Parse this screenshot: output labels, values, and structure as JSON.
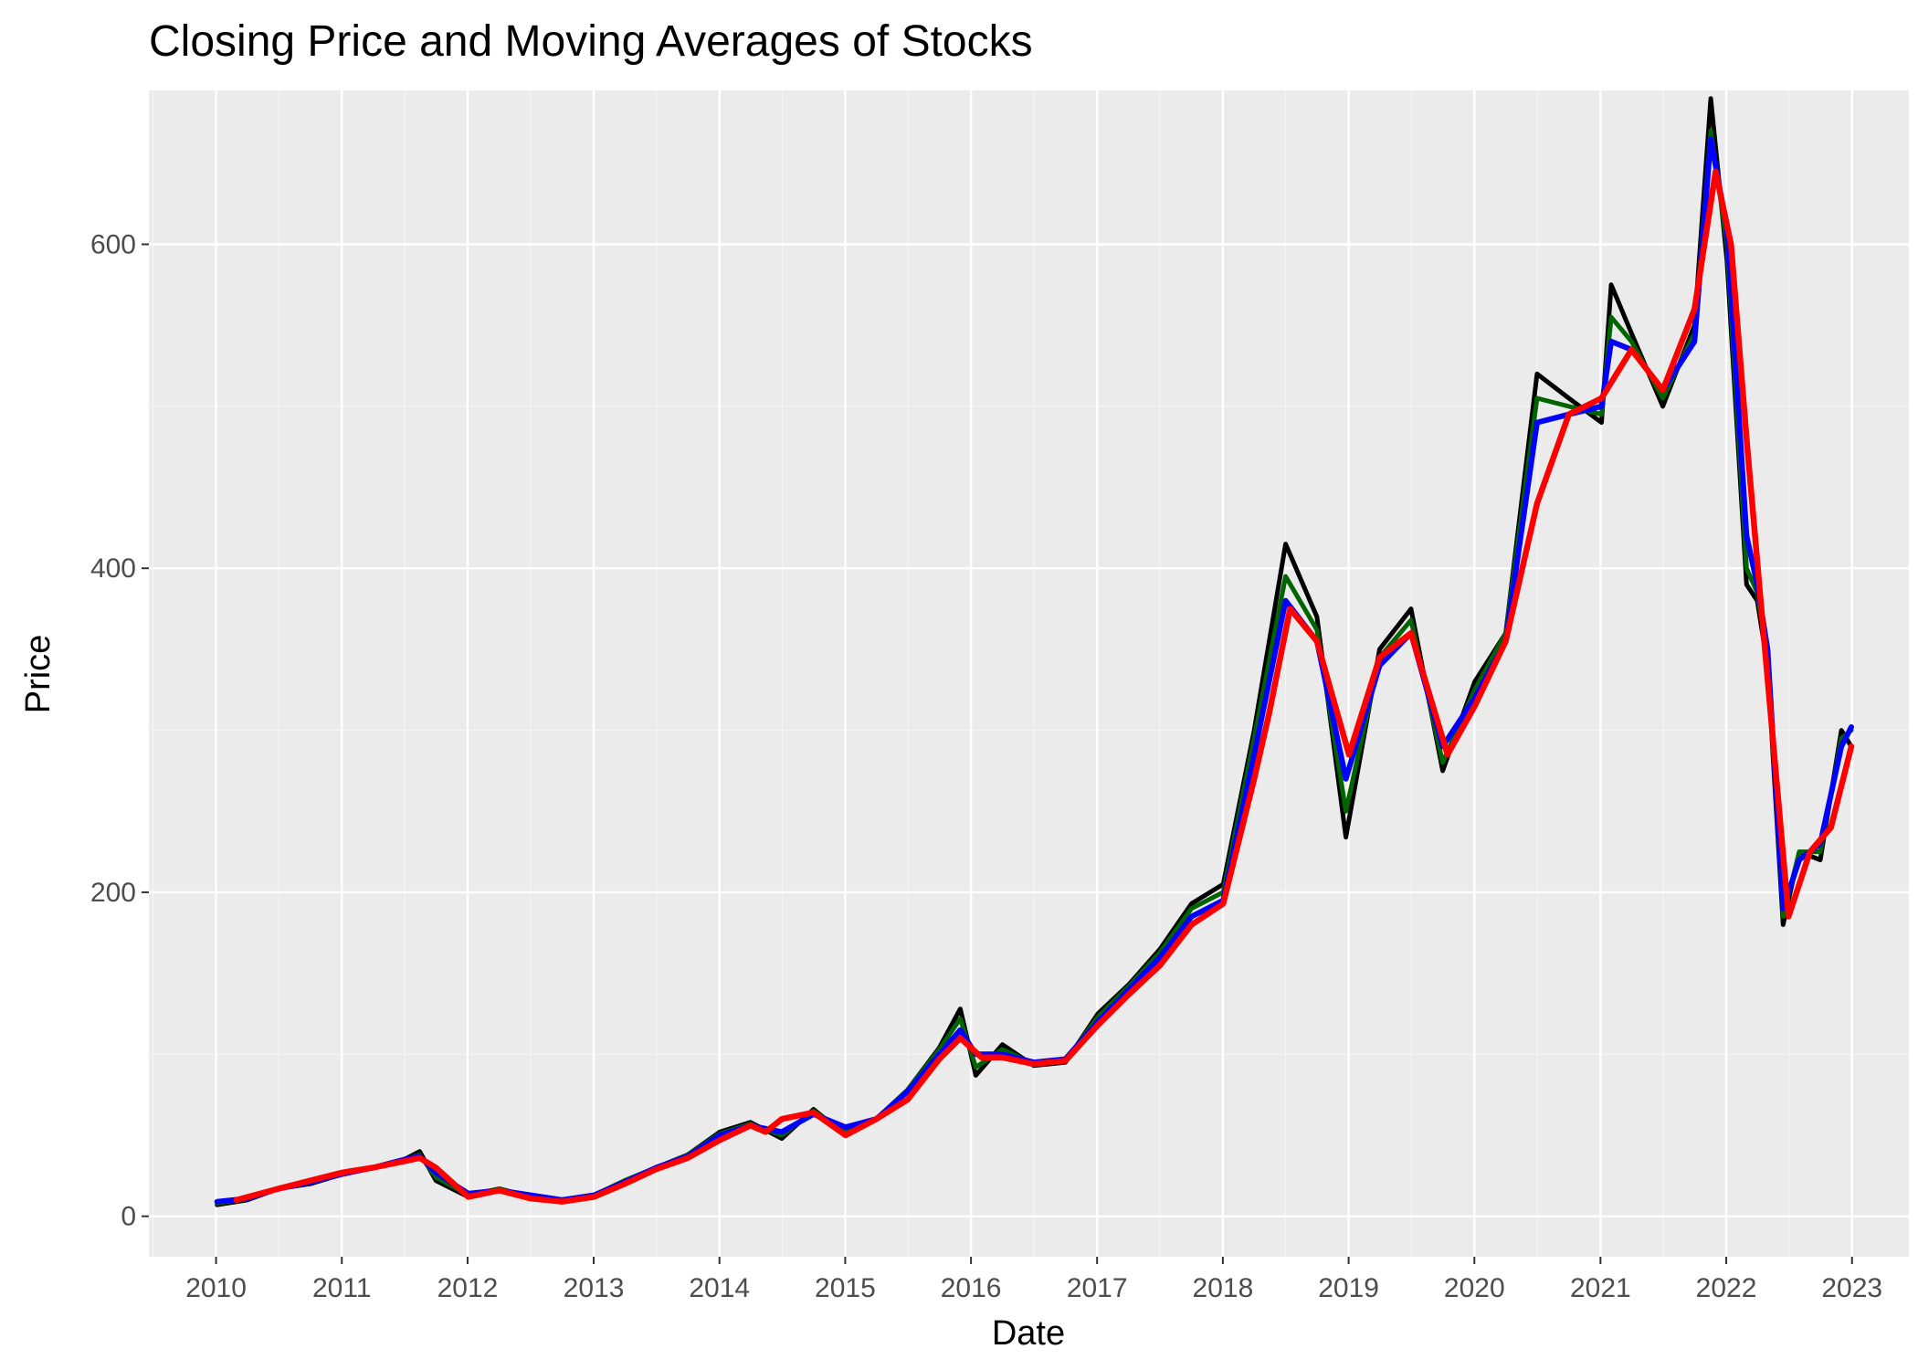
{
  "colors": {
    "panel_background": "#EBEBEB",
    "grid_major": "#FFFFFF",
    "grid_minor": "#F5F5F5",
    "close": "#000000",
    "ma_short": "#006400",
    "ma_medium": "#0000FF",
    "ma_long": "#FF0000",
    "tick_text": "#4D4D4D"
  },
  "chart_data": {
    "type": "line",
    "title": "Closing Price and Moving Averages of Stocks",
    "xlabel": "Date",
    "ylabel": "Price",
    "x_ticks": [
      "2010",
      "2011",
      "2012",
      "2013",
      "2014",
      "2015",
      "2016",
      "2017",
      "2018",
      "2019",
      "2020",
      "2021",
      "2022",
      "2023"
    ],
    "y_ticks": [
      0,
      200,
      400,
      600
    ],
    "xlim": [
      "2009-06-20",
      "2023-06-15"
    ],
    "ylim": [
      -25,
      695
    ],
    "grid": true,
    "legend": "none",
    "series": [
      {
        "color": "#000000",
        "x": [
          "2010-01-04",
          "2010-04-01",
          "2010-07-01",
          "2010-10-01",
          "2011-01-03",
          "2011-04-01",
          "2011-07-01",
          "2011-08-15",
          "2011-10-01",
          "2012-01-03",
          "2012-04-02",
          "2012-07-02",
          "2012-10-01",
          "2013-01-02",
          "2013-04-01",
          "2013-07-01",
          "2013-10-01",
          "2014-01-02",
          "2014-04-01",
          "2014-07-01",
          "2014-10-01",
          "2015-01-02",
          "2015-04-01",
          "2015-07-01",
          "2015-10-01",
          "2015-12-01",
          "2016-01-15",
          "2016-04-01",
          "2016-07-01",
          "2016-10-01",
          "2017-01-03",
          "2017-04-03",
          "2017-07-03",
          "2017-10-02",
          "2018-01-02",
          "2018-04-02",
          "2018-07-02",
          "2018-10-01",
          "2018-12-24",
          "2019-04-01",
          "2019-07-01",
          "2019-10-01",
          "2020-01-02",
          "2020-04-01",
          "2020-07-01",
          "2020-10-01",
          "2021-01-04",
          "2021-02-01",
          "2021-04-01",
          "2021-07-01",
          "2021-10-01",
          "2021-11-17",
          "2022-01-03",
          "2022-03-01",
          "2022-04-01",
          "2022-05-01",
          "2022-06-15",
          "2022-08-01",
          "2022-10-01",
          "2022-12-01",
          "2022-12-30"
        ],
        "y": [
          7,
          10,
          17,
          20,
          26,
          30,
          35,
          40,
          22,
          12,
          17,
          12,
          9,
          13,
          22,
          30,
          38,
          52,
          58,
          48,
          66,
          50,
          60,
          78,
          104,
          128,
          87,
          106,
          93,
          95,
          125,
          143,
          165,
          193,
          205,
          300,
          415,
          370,
          234,
          350,
          375,
          275,
          330,
          360,
          520,
          505,
          490,
          575,
          545,
          500,
          550,
          690,
          590,
          390,
          380,
          340,
          180,
          225,
          220,
          300,
          290
        ]
      },
      {
        "color": "#006400",
        "x": [
          "2010-01-04",
          "2010-04-01",
          "2010-07-01",
          "2010-10-01",
          "2011-01-03",
          "2011-04-01",
          "2011-07-01",
          "2011-08-15",
          "2011-10-01",
          "2012-01-03",
          "2012-04-02",
          "2012-07-02",
          "2012-10-01",
          "2013-01-02",
          "2013-04-01",
          "2013-07-01",
          "2013-10-01",
          "2014-01-02",
          "2014-04-01",
          "2014-07-01",
          "2014-10-01",
          "2015-01-02",
          "2015-04-01",
          "2015-07-01",
          "2015-10-01",
          "2015-12-01",
          "2016-01-15",
          "2016-04-01",
          "2016-07-01",
          "2016-10-01",
          "2017-01-03",
          "2017-04-03",
          "2017-07-03",
          "2017-10-02",
          "2018-01-02",
          "2018-04-02",
          "2018-07-02",
          "2018-10-01",
          "2018-12-24",
          "2019-04-01",
          "2019-07-01",
          "2019-10-01",
          "2020-01-02",
          "2020-04-01",
          "2020-07-01",
          "2020-10-01",
          "2021-01-04",
          "2021-02-01",
          "2021-04-01",
          "2021-07-01",
          "2021-10-01",
          "2021-11-17",
          "2022-01-03",
          "2022-03-01",
          "2022-04-01",
          "2022-05-01",
          "2022-06-15",
          "2022-08-01",
          "2022-10-01",
          "2022-12-01",
          "2022-12-30"
        ],
        "y": [
          8,
          11,
          17,
          21,
          26,
          30,
          35,
          38,
          24,
          13,
          17,
          12,
          9,
          13,
          22,
          30,
          38,
          51,
          57,
          50,
          65,
          52,
          60,
          78,
          103,
          122,
          92,
          103,
          94,
          96,
          123,
          142,
          163,
          190,
          200,
          295,
          395,
          362,
          250,
          345,
          368,
          280,
          325,
          360,
          505,
          500,
          495,
          555,
          540,
          505,
          545,
          670,
          600,
          400,
          385,
          345,
          185,
          225,
          225,
          295,
          300
        ]
      },
      {
        "color": "#0000FF",
        "x": [
          "2010-01-04",
          "2010-04-01",
          "2010-07-01",
          "2010-10-01",
          "2011-01-03",
          "2011-04-01",
          "2011-07-01",
          "2011-08-15",
          "2011-10-01",
          "2012-01-03",
          "2012-04-02",
          "2012-07-02",
          "2012-10-01",
          "2013-01-02",
          "2013-04-01",
          "2013-07-01",
          "2013-10-01",
          "2014-01-02",
          "2014-04-01",
          "2014-07-01",
          "2014-10-01",
          "2015-01-02",
          "2015-04-01",
          "2015-07-01",
          "2015-10-01",
          "2015-12-01",
          "2016-01-15",
          "2016-04-01",
          "2016-07-01",
          "2016-10-01",
          "2017-01-03",
          "2017-04-03",
          "2017-07-03",
          "2017-10-02",
          "2018-01-02",
          "2018-04-02",
          "2018-07-02",
          "2018-10-01",
          "2018-12-24",
          "2019-04-01",
          "2019-07-01",
          "2019-10-01",
          "2020-01-02",
          "2020-04-01",
          "2020-07-01",
          "2020-10-01",
          "2021-01-04",
          "2021-02-01",
          "2021-04-01",
          "2021-07-01",
          "2021-10-01",
          "2021-11-17",
          "2022-01-03",
          "2022-03-01",
          "2022-04-01",
          "2022-05-01",
          "2022-06-15",
          "2022-08-01",
          "2022-10-01",
          "2022-12-01",
          "2022-12-30"
        ],
        "y": [
          9,
          11,
          17,
          21,
          26,
          30,
          35,
          37,
          27,
          14,
          16,
          13,
          10,
          13,
          21,
          30,
          37,
          50,
          56,
          52,
          63,
          55,
          60,
          77,
          100,
          115,
          100,
          100,
          95,
          97,
          120,
          140,
          160,
          185,
          195,
          285,
          380,
          355,
          270,
          340,
          360,
          290,
          320,
          355,
          490,
          495,
          500,
          540,
          535,
          510,
          540,
          665,
          610,
          420,
          390,
          350,
          190,
          220,
          230,
          290,
          302
        ]
      },
      {
        "color": "#FF0000",
        "x": [
          "2010-03-01",
          "2010-07-01",
          "2010-10-01",
          "2011-01-03",
          "2011-04-01",
          "2011-07-01",
          "2011-08-15",
          "2011-10-01",
          "2012-01-03",
          "2012-04-02",
          "2012-07-02",
          "2012-10-01",
          "2013-01-02",
          "2013-04-01",
          "2013-07-01",
          "2013-10-01",
          "2014-01-02",
          "2014-04-01",
          "2014-05-15",
          "2014-07-01",
          "2014-10-01",
          "2015-01-02",
          "2015-04-01",
          "2015-07-01",
          "2015-10-01",
          "2015-12-01",
          "2016-02-01",
          "2016-04-01",
          "2016-07-01",
          "2016-10-01",
          "2017-01-03",
          "2017-04-03",
          "2017-07-03",
          "2017-10-02",
          "2018-01-02",
          "2018-04-02",
          "2018-05-15",
          "2018-07-15",
          "2018-10-01",
          "2019-01-02",
          "2019-04-01",
          "2019-07-01",
          "2019-10-15",
          "2020-01-02",
          "2020-04-01",
          "2020-07-01",
          "2020-10-01",
          "2021-01-04",
          "2021-04-01",
          "2021-07-01",
          "2021-10-01",
          "2021-12-01",
          "2022-01-15",
          "2022-03-01",
          "2022-04-15",
          "2022-07-01",
          "2022-09-01",
          "2022-11-01",
          "2022-12-30"
        ],
        "y": [
          10,
          17,
          22,
          27,
          30,
          34,
          36,
          30,
          12,
          16,
          11,
          9,
          12,
          20,
          29,
          36,
          47,
          56,
          52,
          60,
          64,
          50,
          60,
          72,
          97,
          110,
          98,
          98,
          94,
          96,
          118,
          137,
          155,
          180,
          193,
          270,
          310,
          375,
          355,
          285,
          345,
          360,
          285,
          315,
          355,
          440,
          495,
          505,
          535,
          510,
          560,
          645,
          600,
          480,
          370,
          185,
          225,
          240,
          290
        ]
      }
    ]
  }
}
